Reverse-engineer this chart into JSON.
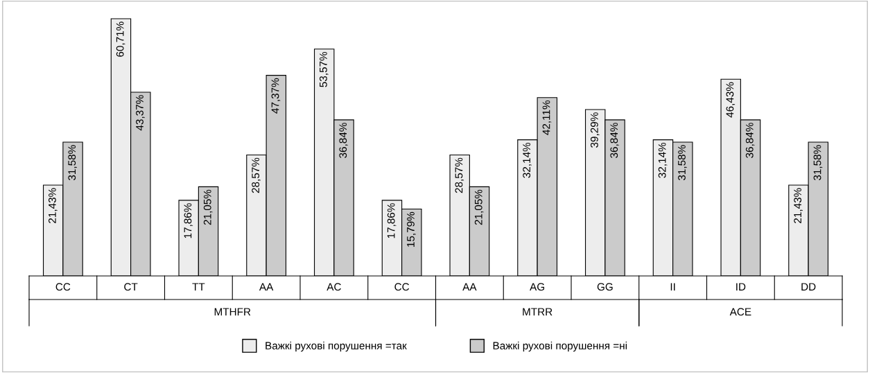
{
  "chart_data": {
    "type": "bar",
    "categories": [
      "CC",
      "CT",
      "TT",
      "AA",
      "AC",
      "CC",
      "AA",
      "AG",
      "GG",
      "II",
      "ID",
      "DD"
    ],
    "annotations": [
      "MTHFR",
      "MTRR",
      "ACE"
    ],
    "series": [
      {
        "name": "Важкі рухові порушення =так",
        "color": "#ededed",
        "values": [
          21.43,
          60.71,
          17.86,
          28.57,
          53.57,
          17.86,
          28.57,
          32.14,
          39.29,
          32.14,
          46.43,
          21.43
        ],
        "value_labels": [
          "21,43%",
          "60,71%",
          "17,86%",
          "28,57%",
          "53,57%",
          "17,86%",
          "28,57%",
          "32,14%",
          "39,29%",
          "32,14%",
          "46,43%",
          "21,43%"
        ]
      },
      {
        "name": "Важкі рухові порушення =ні",
        "color": "#cbcbcb",
        "values": [
          31.58,
          43.37,
          21.05,
          47.37,
          36.84,
          15.79,
          21.05,
          42.11,
          36.84,
          31.58,
          36.84,
          31.58
        ],
        "value_labels": [
          "31,58%",
          "43,37%",
          "21,05%",
          "47,37%",
          "36,84%",
          "15,79%",
          "21,05%",
          "42,11%",
          "36,84%",
          "31,58%",
          "36,84%",
          "31,58%"
        ]
      }
    ],
    "legend": "bottom"
  }
}
